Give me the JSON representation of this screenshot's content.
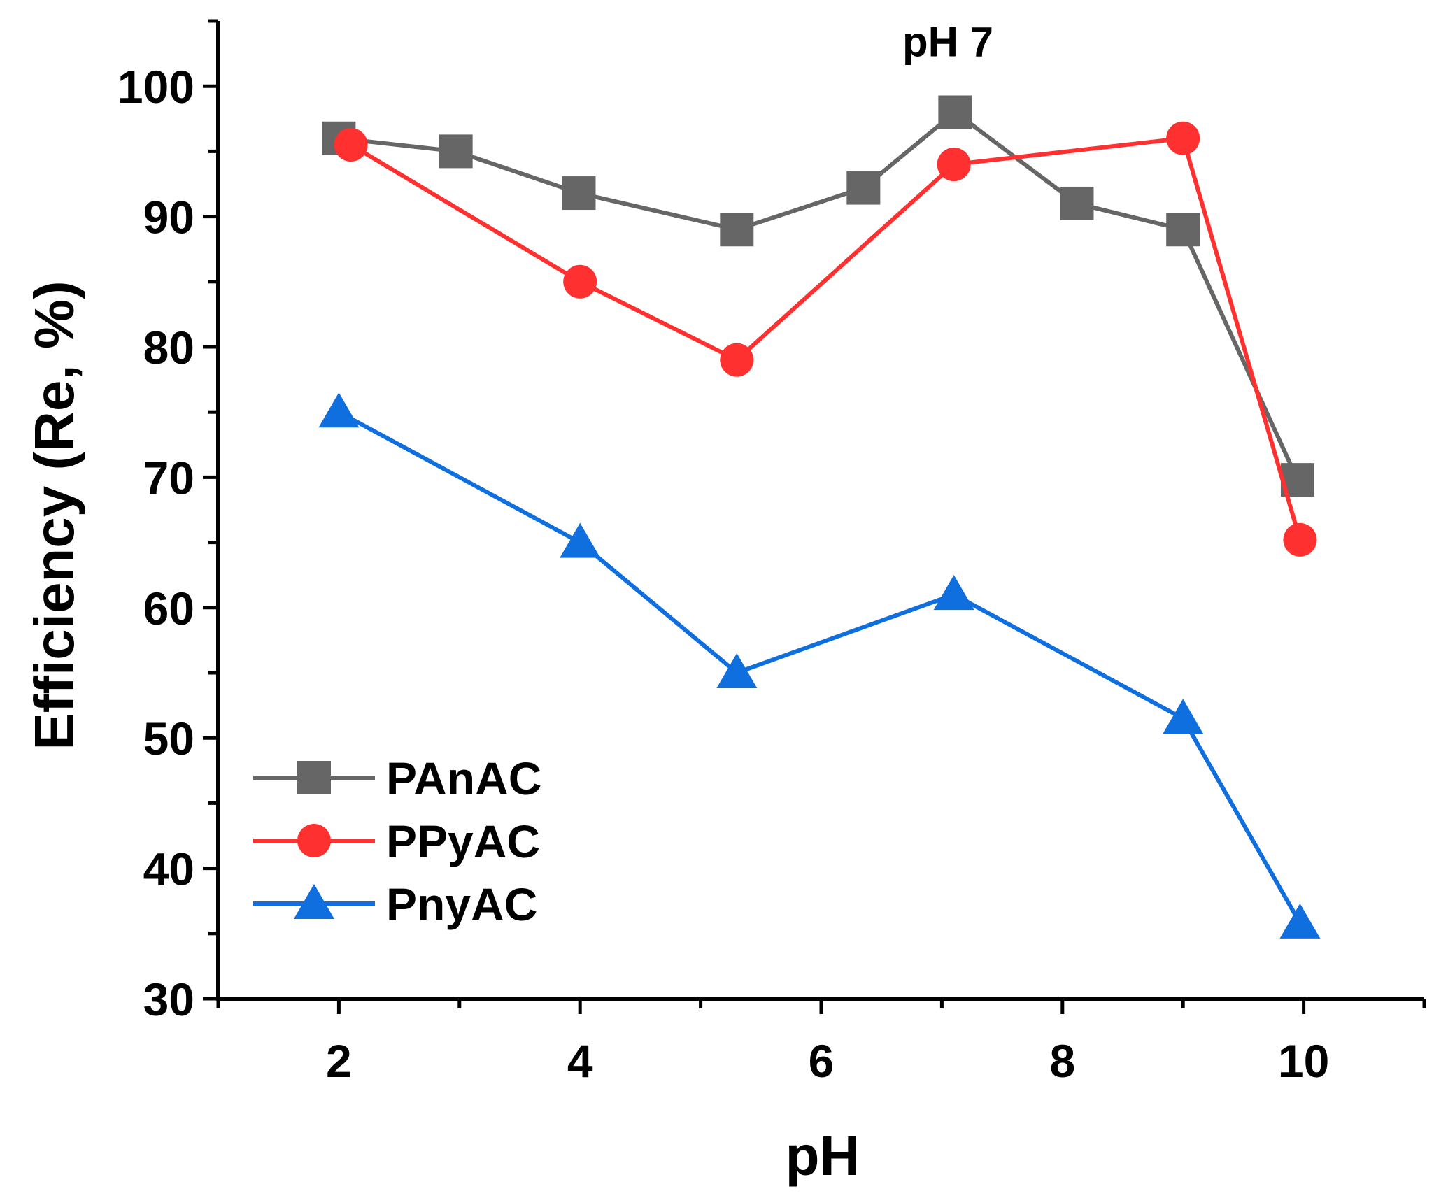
{
  "chart_data": {
    "type": "line",
    "title": "",
    "xlabel": "pH",
    "ylabel": "Efficiency (Re, %)",
    "xlim": [
      1,
      11
    ],
    "ylim": [
      30,
      105
    ],
    "xticks": [
      2,
      4,
      6,
      8,
      10
    ],
    "yticks": [
      30,
      40,
      50,
      60,
      70,
      80,
      90,
      100
    ],
    "xtick_labels": [
      "2",
      "4",
      "6",
      "8",
      "10"
    ],
    "ytick_labels": [
      "30",
      "40",
      "50",
      "60",
      "70",
      "80",
      "90",
      "100"
    ],
    "legend_position": "bottom-left",
    "annotations": [
      {
        "text": "pH 7",
        "x": 7.05,
        "y": 102.3
      }
    ],
    "series": [
      {
        "name": "PAnAC",
        "color": "#666666",
        "marker": "square",
        "x": [
          2,
          2.97,
          3.99,
          5.3,
          6.35,
          7.11,
          8.12,
          9,
          9.95
        ],
        "y": [
          96,
          95,
          91.8,
          89,
          92.2,
          98,
          91,
          89,
          69.8
        ]
      },
      {
        "name": "PPyAC",
        "color": "#ff3030",
        "marker": "circle",
        "x": [
          2.1,
          4,
          5.3,
          7.1,
          9,
          9.97
        ],
        "y": [
          95.5,
          85,
          79,
          94,
          96,
          65.2
        ]
      },
      {
        "name": "PnyAC",
        "color": "#0f6fde",
        "marker": "triangle",
        "x": [
          2,
          4,
          5.3,
          7.1,
          9,
          9.97
        ],
        "y": [
          75,
          65,
          55,
          61,
          51.5,
          35.8
        ]
      }
    ]
  }
}
